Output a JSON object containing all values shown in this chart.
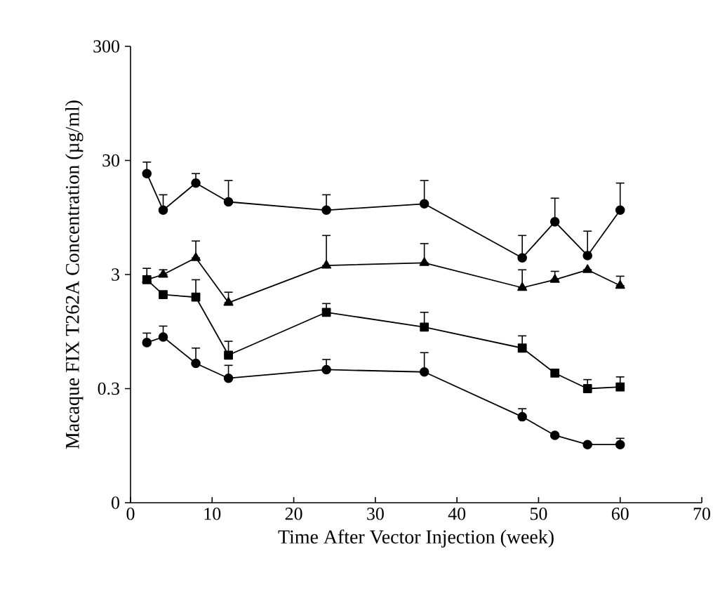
{
  "chart_data": {
    "type": "line",
    "xlabel": "Time After Vector Injection (week)",
    "ylabel": "Macaque FIX T262A Concentration (µg/ml)",
    "log": "y",
    "grid": false,
    "line_style": "solid",
    "xlim": [
      0,
      70
    ],
    "xticks": [
      0,
      10,
      20,
      30,
      40,
      50,
      60,
      70
    ],
    "ylim": [
      0.03,
      300
    ],
    "yticks": [
      {
        "value": 0.03,
        "label": "0"
      },
      0.3,
      3,
      30,
      300
    ],
    "x": [
      2,
      4,
      8,
      12,
      24,
      36,
      48,
      52,
      56,
      60
    ],
    "series": [
      {
        "color": "#000000",
        "marker": "circle",
        "values": [
          23,
          11,
          19,
          13,
          11,
          12.5,
          4.2,
          8.7,
          4.4,
          11
        ],
        "errors": [
          [
            23,
            29
          ],
          [
            11,
            15
          ],
          [
            19,
            23
          ],
          [
            13,
            20
          ],
          [
            11,
            15
          ],
          [
            12.5,
            20
          ],
          [
            4.2,
            6.6
          ],
          [
            8.7,
            14
          ],
          [
            4.4,
            7.2
          ],
          [
            11,
            19
          ]
        ]
      },
      {
        "color": "#000000",
        "marker": "triangle",
        "values": [
          2.7,
          3.0,
          4.2,
          1.7,
          3.6,
          3.8,
          2.3,
          2.7,
          3.3,
          2.4
        ],
        "errors": [
          null,
          [
            3.0,
            3.3
          ],
          [
            4.2,
            5.9
          ],
          [
            1.7,
            2.1
          ],
          [
            3.6,
            6.6
          ],
          [
            3.8,
            5.6
          ],
          [
            2.3,
            3.3
          ],
          [
            2.7,
            3.2
          ],
          null,
          [
            2.4,
            2.9
          ]
        ]
      },
      {
        "color": "#000000",
        "marker": "square",
        "values": [
          2.7,
          2.0,
          1.9,
          0.59,
          1.4,
          1.04,
          0.68,
          0.41,
          0.3,
          0.31
        ],
        "errors": [
          [
            2.7,
            3.4
          ],
          null,
          [
            1.9,
            2.7
          ],
          [
            0.59,
            0.78
          ],
          [
            1.4,
            1.67
          ],
          [
            1.04,
            1.4
          ],
          [
            0.68,
            0.87
          ],
          null,
          [
            0.3,
            0.36
          ],
          [
            0.31,
            0.38
          ]
        ]
      },
      {
        "color": "#000000",
        "marker": "circle",
        "values": [
          0.76,
          0.85,
          0.5,
          0.37,
          0.44,
          0.42,
          0.17,
          0.117,
          0.097,
          0.097
        ],
        "errors": [
          [
            0.76,
            0.92
          ],
          [
            0.85,
            1.06
          ],
          [
            0.5,
            0.68
          ],
          [
            0.37,
            0.48
          ],
          [
            0.44,
            0.54
          ],
          [
            0.42,
            0.62
          ],
          [
            0.17,
            0.2
          ],
          null,
          null,
          [
            0.097,
            0.11
          ]
        ]
      }
    ]
  }
}
